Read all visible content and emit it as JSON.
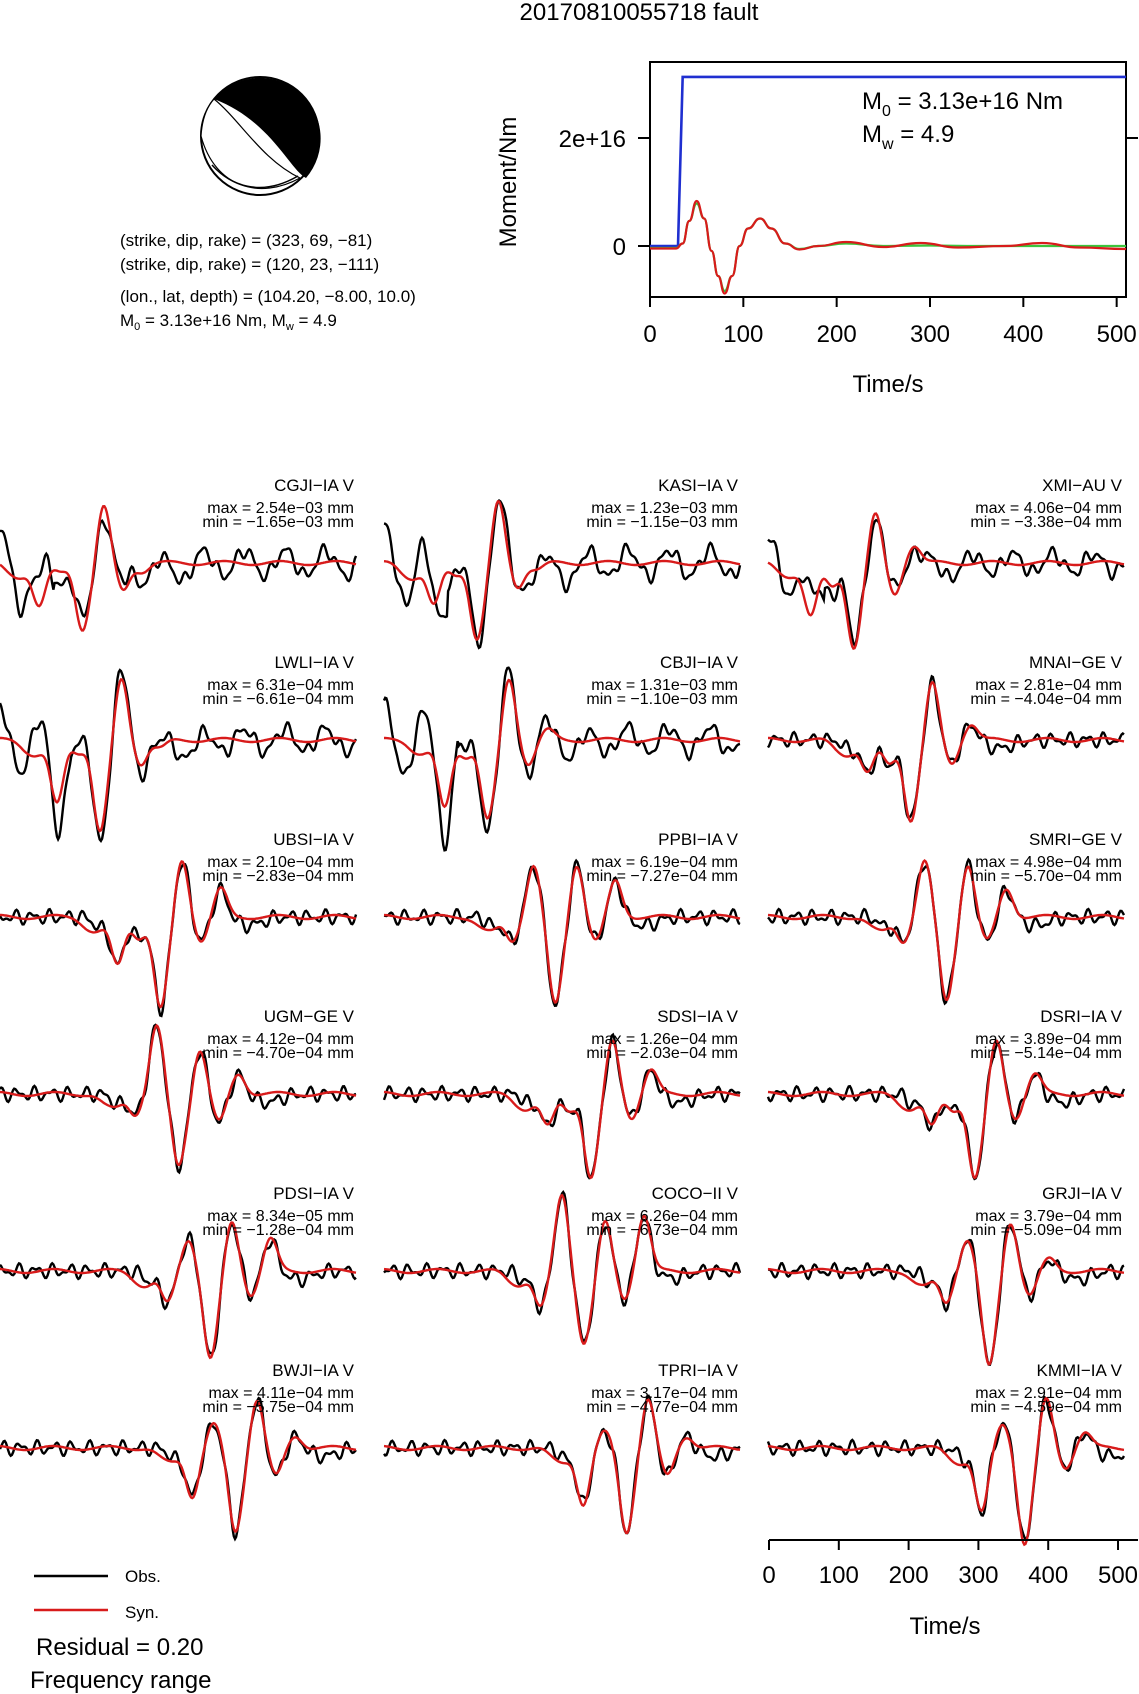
{
  "title": "20170810055718 fault",
  "mechanism": {
    "line1": "(strike, dip, rake) = (323, 69, −81)",
    "line2": "(strike, dip, rake) = (120, 23, −111)",
    "line3": "(lon., lat, depth) = (104.20, −8.00, 10.0)",
    "line4": "M0 = 3.13e+16 Nm, Mw = 4.9"
  },
  "chart_data": [
    {
      "type": "line",
      "ylabel": "Moment/Nm",
      "xlabel": "Time/s",
      "xlim": [
        0,
        510
      ],
      "x_ticks": [
        "0",
        "100",
        "200",
        "300",
        "400",
        "500"
      ],
      "y_ticks": [
        "0",
        "2e+16"
      ],
      "m0_text": "3.13e+16 Nm",
      "mw_text": "4.9",
      "cumulative_moment": {
        "onset_s": 30,
        "rise_end_s": 35,
        "final_Nm": 3.13e+16,
        "color": "#1f2fd0"
      },
      "moment_rate_green": [
        [
          0,
          -0.04
        ],
        [
          28,
          -0.04
        ],
        [
          35,
          0.05
        ],
        [
          42,
          0.5
        ],
        [
          50,
          0.85
        ],
        [
          58,
          0.55
        ],
        [
          66,
          -0.1
        ],
        [
          73,
          -0.6
        ],
        [
          80,
          -0.9
        ],
        [
          88,
          -0.6
        ],
        [
          96,
          0.0
        ],
        [
          105,
          0.35
        ],
        [
          118,
          0.55
        ],
        [
          130,
          0.35
        ],
        [
          145,
          0.05
        ],
        [
          160,
          -0.06
        ],
        [
          180,
          0.0
        ],
        [
          210,
          0.05
        ],
        [
          250,
          0.0
        ],
        [
          300,
          0.01
        ],
        [
          340,
          0.0
        ],
        [
          400,
          0.0
        ],
        [
          460,
          0.0
        ],
        [
          510,
          0.0
        ]
      ],
      "moment_rate_red": [
        [
          0,
          -0.05
        ],
        [
          28,
          -0.05
        ],
        [
          35,
          0.05
        ],
        [
          42,
          0.5
        ],
        [
          50,
          0.9
        ],
        [
          58,
          0.55
        ],
        [
          66,
          -0.1
        ],
        [
          73,
          -0.6
        ],
        [
          80,
          -0.95
        ],
        [
          88,
          -0.6
        ],
        [
          96,
          0.0
        ],
        [
          105,
          0.35
        ],
        [
          118,
          0.55
        ],
        [
          130,
          0.35
        ],
        [
          145,
          0.05
        ],
        [
          160,
          -0.07
        ],
        [
          180,
          0.0
        ],
        [
          210,
          0.08
        ],
        [
          250,
          -0.02
        ],
        [
          290,
          0.06
        ],
        [
          330,
          -0.03
        ],
        [
          380,
          0.0
        ],
        [
          420,
          0.06
        ],
        [
          460,
          -0.03
        ],
        [
          510,
          -0.06
        ]
      ]
    },
    {
      "type": "line",
      "xlabel": "Time/s",
      "xlim": [
        0,
        510
      ],
      "x_ticks": [
        "0",
        "100",
        "200",
        "300",
        "400",
        "500"
      ],
      "legend": {
        "obs": "Obs.",
        "syn": "Syn."
      },
      "residual": "Residual = 0.20",
      "frequency_label": "Frequency range",
      "stations": [
        {
          "name": "CGJI−IA V",
          "max": "max = 2.54e−03 mm",
          "min": "min = −1.65e−03 mm",
          "p": [
            0.23,
            2.0,
            -1.05,
            -0.25,
            -1.55,
            1.5,
            -0.7,
            -0.2,
            -0.6
          ]
        },
        {
          "name": "KASI−IA V",
          "max": "max = 1.23e−03 mm",
          "min": "min = −1.15e−03 mm",
          "p": [
            0.26,
            2.1,
            -1.05,
            -0.3,
            -1.8,
            1.6,
            -0.6,
            -0.15,
            -0.6
          ]
        },
        {
          "name": "XMI−AU V",
          "max": "max = 4.06e−04 mm",
          "min": "min = −3.38e−04 mm",
          "p": [
            0.24,
            1.5,
            -1.3,
            -0.6,
            -2.0,
            1.3,
            -0.8,
            0.45,
            -0.5
          ]
        },
        {
          "name": "LWLI−IA V",
          "max": "max = 6.31e−04 mm",
          "min": "min = −6.61e−04 mm",
          "p": [
            0.28,
            1.8,
            -1.6,
            -0.3,
            -2.2,
            1.6,
            -0.6,
            -0.2,
            -0.6
          ]
        },
        {
          "name": "CBJI−IA V",
          "max": "max = 1.31e−03 mm",
          "min": "min = −1.10e−03 mm",
          "p": [
            0.29,
            2.0,
            -1.7,
            -0.4,
            -1.9,
            1.6,
            -0.6,
            0.25,
            -0.5
          ]
        },
        {
          "name": "MNAI−GE V",
          "max": "max = 2.81e−04 mm",
          "min": "min = −4.04e−04 mm",
          "p": [
            0.4,
            0.0,
            -0.8,
            -0.6,
            -1.9,
            1.5,
            -0.6,
            0.4,
            -0.6
          ]
        },
        {
          "name": "UBSI−IA V",
          "max": "max = 2.10e−04 mm",
          "min": "min = −2.83e−04 mm",
          "p": [
            0.45,
            0.0,
            -1.2,
            -0.5,
            -2.2,
            1.5,
            -0.6,
            0.7,
            -0.6
          ]
        },
        {
          "name": "PPBI−IA V",
          "max": "max = 6.19e−04 mm",
          "min": "min = −7.27e−04 mm",
          "p": [
            0.48,
            0.0,
            -0.6,
            1.3,
            -2.1,
            1.4,
            -0.6,
            0.9,
            -0.6
          ]
        },
        {
          "name": "SMRI−GE V",
          "max": "max = 4.98e−04 mm",
          "min": "min = −5.70e−04 mm",
          "p": [
            0.5,
            0.0,
            -0.6,
            1.4,
            -2.0,
            1.4,
            -0.6,
            0.7,
            -0.6
          ]
        },
        {
          "name": "UGM−GE V",
          "max": "max = 4.12e−04 mm",
          "min": "min = −4.70e−04 mm",
          "p": [
            0.5,
            0.0,
            -0.5,
            1.7,
            -1.7,
            1.2,
            -0.7,
            0.5,
            -0.6
          ]
        },
        {
          "name": "SDSI−IA V",
          "max": "max = 1.26e−04 mm",
          "min": "min = −2.03e−04 mm",
          "p": [
            0.58,
            0.0,
            -0.8,
            -0.4,
            -2.0,
            1.4,
            -0.6,
            0.6,
            -0.6
          ]
        },
        {
          "name": "DSRI−IA V",
          "max": "max = 3.89e−04 mm",
          "min": "min = −5.14e−04 mm",
          "p": [
            0.58,
            0.0,
            -0.8,
            -0.4,
            -2.0,
            1.4,
            -0.6,
            0.5,
            -0.6
          ]
        },
        {
          "name": "PDSI−IA V",
          "max": "max = 8.34e−05 mm",
          "min": "min = −1.28e−04 mm",
          "p": [
            0.59,
            0.0,
            -0.8,
            0.8,
            -2.1,
            1.3,
            -0.6,
            0.8,
            -0.6
          ]
        },
        {
          "name": "COCO−II V",
          "max": "max = 6.26e−04 mm",
          "min": "min = −6.73e−04 mm",
          "p": [
            0.56,
            0.0,
            -0.9,
            1.9,
            -1.7,
            1.3,
            -0.7,
            1.4,
            -0.5
          ]
        },
        {
          "name": "GRJI−IA V",
          "max": "max = 3.79e−04 mm",
          "min": "min = −5.09e−04 mm",
          "p": [
            0.62,
            0.0,
            -0.8,
            0.8,
            -2.3,
            1.3,
            -0.6,
            0.3,
            -0.6
          ]
        },
        {
          "name": "BWJI−IA V",
          "max": "max = 4.11e−04 mm",
          "min": "min = −5.75e−04 mm",
          "p": [
            0.66,
            0.0,
            -1.2,
            0.6,
            -2.0,
            1.3,
            -0.7,
            0.3,
            -0.6
          ]
        },
        {
          "name": "TPRI−IA V",
          "max": "max = 3.17e−04 mm",
          "min": "min = −4.77e−04 mm",
          "p": [
            0.68,
            0.0,
            -1.4,
            0.4,
            -2.0,
            1.3,
            -0.7,
            0.3,
            -0.6
          ]
        },
        {
          "name": "KMMI−IA V",
          "max": "max = 2.91e−04 mm",
          "min": "min = −4.59e−04 mm",
          "p": [
            0.72,
            0.0,
            -1.6,
            0.6,
            -2.3,
            1.3,
            -0.5,
            0.4,
            -0.6
          ]
        }
      ]
    }
  ]
}
